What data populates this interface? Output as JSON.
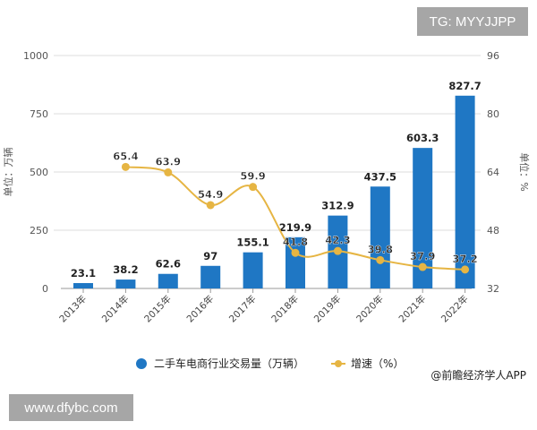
{
  "overlay": {
    "tg_label": "TG: MYYJJPP",
    "site_label": "www.dfybc.com"
  },
  "credit": "@前瞻经济学人APP",
  "chart_data": {
    "type": "bar+line",
    "categories": [
      "2013年",
      "2014年",
      "2015年",
      "2016年",
      "2017年",
      "2018年",
      "2019年",
      "2020年",
      "2021年",
      "2022年"
    ],
    "series": [
      {
        "name": "二手车电商行业交易量（万辆）",
        "type": "bar",
        "axis": "left",
        "color": "#1f77c4",
        "values": [
          23.1,
          38.2,
          62.6,
          97,
          155.1,
          219.9,
          312.9,
          437.5,
          603.3,
          827.7
        ],
        "labels": [
          "23.1",
          "38.2",
          "62.6",
          "97",
          "155.1",
          "219.9",
          "312.9",
          "437.5",
          "603.3",
          "827.7"
        ]
      },
      {
        "name": "增速（%）",
        "type": "line",
        "axis": "right",
        "color": "#e6b543",
        "values": [
          null,
          65.4,
          63.9,
          54.9,
          59.9,
          41.8,
          42.3,
          39.8,
          37.9,
          37.2
        ],
        "labels": [
          "",
          "65.4",
          "63.9",
          "54.9",
          "59.9",
          "41.8",
          "42.3",
          "39.8",
          "37.9",
          "37.2"
        ]
      }
    ],
    "ylabel_left": "单位：万辆",
    "ylabel_right": "单位：%",
    "ylim_left": [
      0,
      1000
    ],
    "yticks_left": [
      "0",
      "250",
      "500",
      "750",
      "1000"
    ],
    "ylim_right": [
      32,
      96
    ],
    "yticks_right": [
      "32",
      "48",
      "64",
      "80",
      "96"
    ],
    "grid": true,
    "legend_position": "bottom"
  }
}
